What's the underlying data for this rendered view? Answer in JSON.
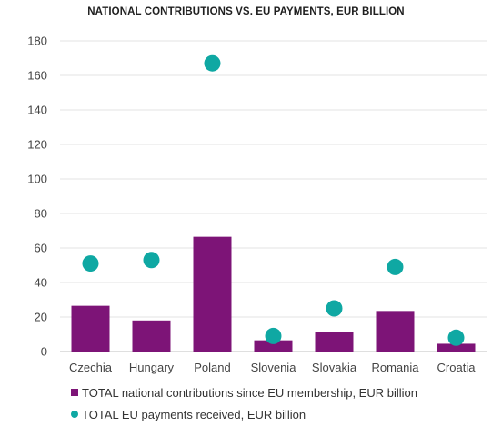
{
  "chart_data": {
    "type": "bar",
    "title": "NATIONAL CONTRIBUTIONS VS. EU PAYMENTS, EUR BILLION",
    "categories": [
      "Czechia",
      "Hungary",
      "Poland",
      "Slovenia",
      "Slovakia",
      "Romania",
      "Croatia"
    ],
    "ylim": [
      0,
      180
    ],
    "yticks": [
      0,
      20,
      40,
      60,
      80,
      100,
      120,
      140,
      160,
      180
    ],
    "grid": true,
    "legend_position": "bottom",
    "series": [
      {
        "name": "TOTAL national contributions since EU membership, EUR billion",
        "type": "bar",
        "color": "#7d1477",
        "values": [
          26.5,
          18,
          66.5,
          6.5,
          11.5,
          23.5,
          4.5
        ]
      },
      {
        "name": "TOTAL EU payments received, EUR billion",
        "type": "scatter",
        "color": "#0fa8a3",
        "values": [
          51,
          53,
          167,
          9,
          25,
          49,
          8
        ]
      }
    ]
  }
}
